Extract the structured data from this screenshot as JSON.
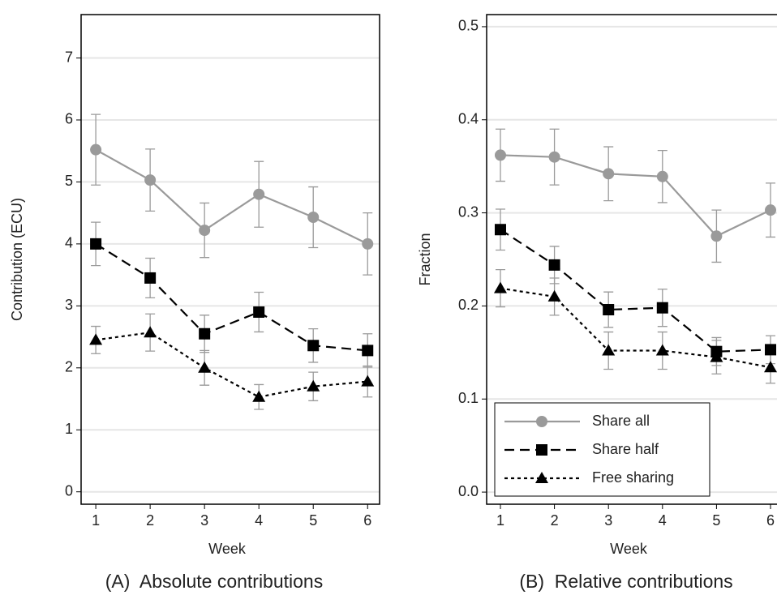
{
  "chart_data": [
    {
      "type": "line",
      "title": "(A)  Absolute contributions",
      "x_label": "Week",
      "y_label": "Contribution (ECU)",
      "x": [
        1,
        2,
        3,
        4,
        5,
        6
      ],
      "xlim": [
        0.73,
        6.22
      ],
      "xticks": [
        1,
        2,
        3,
        4,
        5,
        6
      ],
      "ylim": [
        -0.2,
        7.7
      ],
      "yticks": [
        0,
        1,
        2,
        3,
        4,
        5,
        6,
        7
      ],
      "grid": true,
      "legend": false,
      "series": [
        {
          "color": "#9a9a9a",
          "marker": "circle",
          "dash": "solid",
          "values": [
            5.52,
            5.03,
            4.22,
            4.8,
            4.43,
            4.0
          ],
          "errors": [
            0.57,
            0.5,
            0.44,
            0.53,
            0.49,
            0.5
          ]
        },
        {
          "color": "#000000",
          "marker": "square",
          "dash": "dash",
          "values": [
            4.0,
            3.45,
            2.55,
            2.9,
            2.36,
            2.28
          ],
          "errors": [
            0.35,
            0.32,
            0.3,
            0.32,
            0.27,
            0.27
          ]
        },
        {
          "color": "#000000",
          "marker": "triangle",
          "dash": "dot",
          "values": [
            2.45,
            2.57,
            2.0,
            1.53,
            1.7,
            1.78
          ],
          "errors": [
            0.22,
            0.3,
            0.28,
            0.2,
            0.23,
            0.25
          ]
        }
      ]
    },
    {
      "type": "line",
      "title": "(B)  Relative contributions",
      "x_label": "Week",
      "y_label": "Fraction",
      "x": [
        1,
        2,
        3,
        4,
        5,
        6
      ],
      "xlim": [
        0.745,
        6.27
      ],
      "xticks": [
        1,
        2,
        3,
        4,
        5,
        6
      ],
      "ylim": [
        -0.013,
        0.513
      ],
      "yticks": [
        {
          "value": 0,
          "label": "0.0"
        },
        0.1,
        0.2,
        0.3,
        0.4,
        0.5
      ],
      "grid": true,
      "legend": "lower left",
      "series": [
        {
          "name": "Share all",
          "color": "#9a9a9a",
          "marker": "circle",
          "dash": "solid",
          "values": [
            0.362,
            0.36,
            0.342,
            0.339,
            0.275,
            0.303
          ],
          "errors": [
            0.028,
            0.03,
            0.029,
            0.028,
            0.028,
            0.029
          ]
        },
        {
          "name": "Share half",
          "color": "#000000",
          "marker": "square",
          "dash": "dash",
          "values": [
            0.282,
            0.244,
            0.196,
            0.198,
            0.151,
            0.153
          ],
          "errors": [
            0.022,
            0.02,
            0.019,
            0.02,
            0.015,
            0.015
          ]
        },
        {
          "name": "Free sharing",
          "color": "#000000",
          "marker": "triangle",
          "dash": "dot",
          "values": [
            0.219,
            0.21,
            0.152,
            0.152,
            0.145,
            0.134
          ],
          "errors": [
            0.02,
            0.02,
            0.02,
            0.02,
            0.018,
            0.017
          ]
        }
      ]
    }
  ]
}
